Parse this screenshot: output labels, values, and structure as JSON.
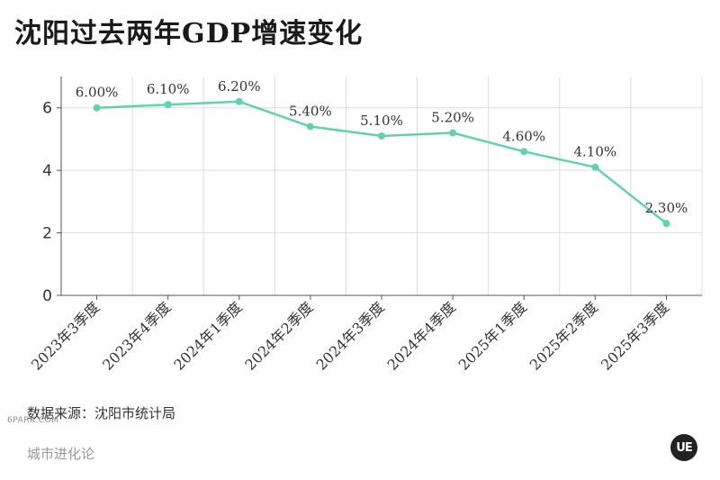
{
  "title": "沈阳过去两年GDP增速变化",
  "source": "数据来源：沈阳市统计局",
  "brand": "城市进化论",
  "logo_text": "UE",
  "watermark": "6PARK.COM",
  "chart_data": {
    "type": "line",
    "title": "沈阳过去两年GDP增速变化",
    "categories": [
      "2023年3季度",
      "2023年4季度",
      "2024年1季度",
      "2024年2季度",
      "2024年3季度",
      "2024年4季度",
      "2025年1季度",
      "2025年2季度",
      "2025年3季度"
    ],
    "values": [
      6.0,
      6.1,
      6.2,
      5.4,
      5.1,
      5.2,
      4.6,
      4.1,
      2.3
    ],
    "data_labels": [
      "6.00%",
      "6.10%",
      "6.20%",
      "5.40%",
      "5.10%",
      "5.20%",
      "4.60%",
      "4.10%",
      "2.30%"
    ],
    "yticks": [
      "0",
      "2",
      "4",
      "6"
    ],
    "ylim": [
      0,
      7
    ],
    "grid": true,
    "line_color": "#5fd3ad",
    "grid_color": "#dddddd",
    "axis_color": "#555555"
  }
}
